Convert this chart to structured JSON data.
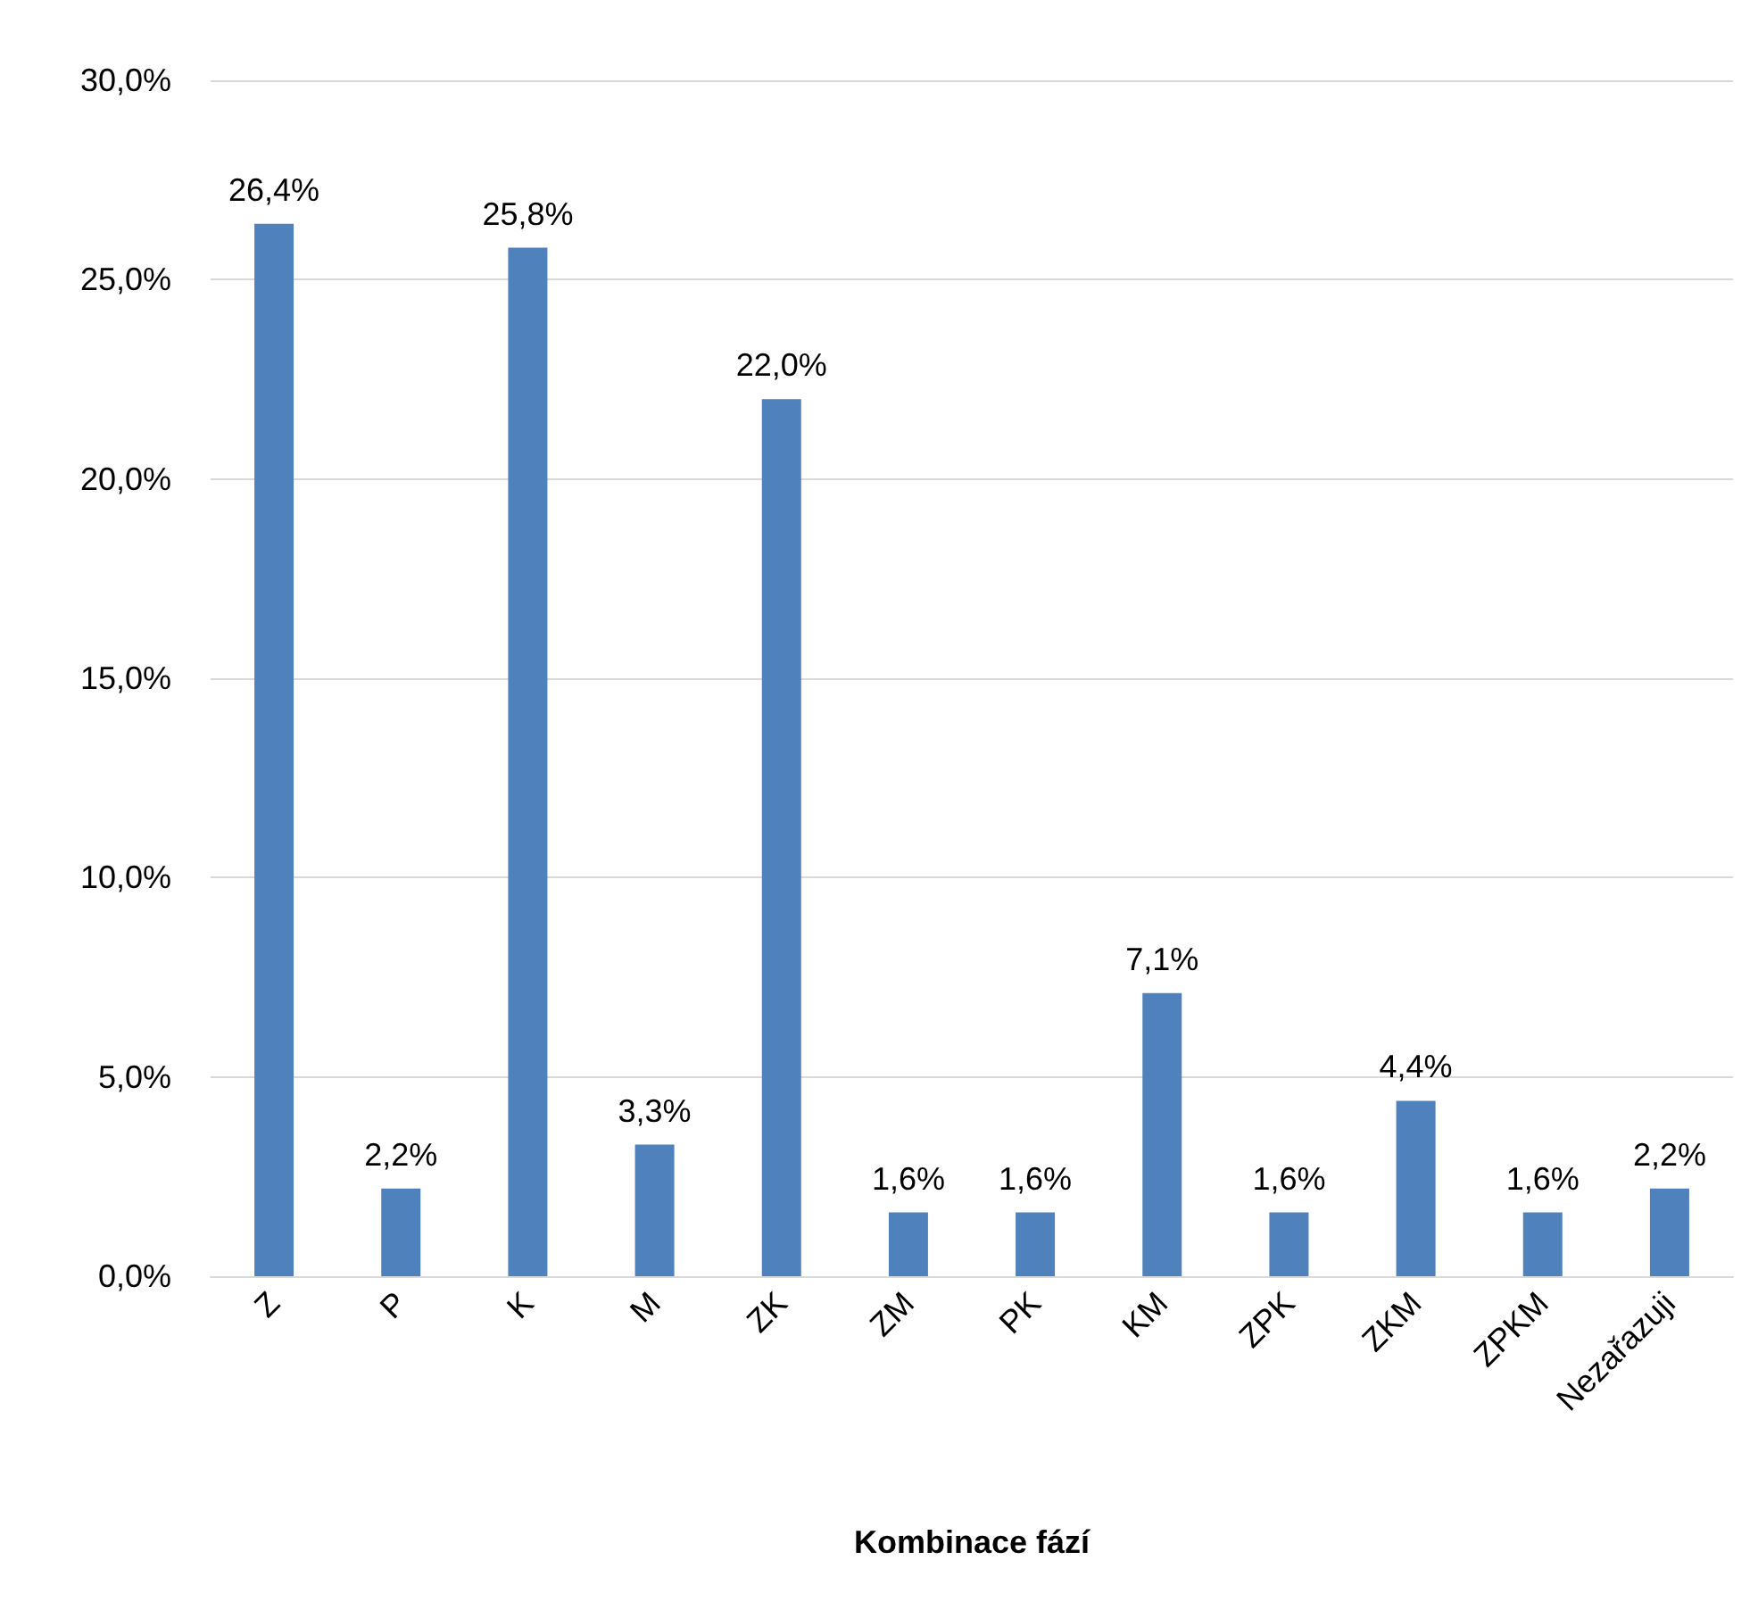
{
  "chart_data": {
    "type": "bar",
    "xlabel": "Kombinace fází",
    "categories": [
      "Z",
      "P",
      "K",
      "M",
      "ZK",
      "ZM",
      "PK",
      "KM",
      "ZPK",
      "ZKM",
      "ZPKM",
      "Nezařazuji"
    ],
    "values": [
      26.4,
      2.2,
      25.8,
      3.3,
      22.0,
      1.6,
      1.6,
      7.1,
      1.6,
      4.4,
      1.6,
      2.2
    ],
    "value_labels": [
      "26,4%",
      "2,2%",
      "25,8%",
      "3,3%",
      "22,0%",
      "1,6%",
      "1,6%",
      "7,1%",
      "1,6%",
      "4,4%",
      "1,6%",
      "2,2%"
    ],
    "color": "#4f81bd",
    "ylim": [
      0,
      30
    ],
    "yticks": [
      {
        "value": 0,
        "label": "0,0%"
      },
      {
        "value": 5,
        "label": "5,0%"
      },
      {
        "value": 10,
        "label": "10,0%"
      },
      {
        "value": 15,
        "label": "15,0%"
      },
      {
        "value": 20,
        "label": "20,0%"
      },
      {
        "value": 25,
        "label": "25,0%"
      },
      {
        "value": 30,
        "label": "30,0%"
      }
    ],
    "grid": "y"
  }
}
